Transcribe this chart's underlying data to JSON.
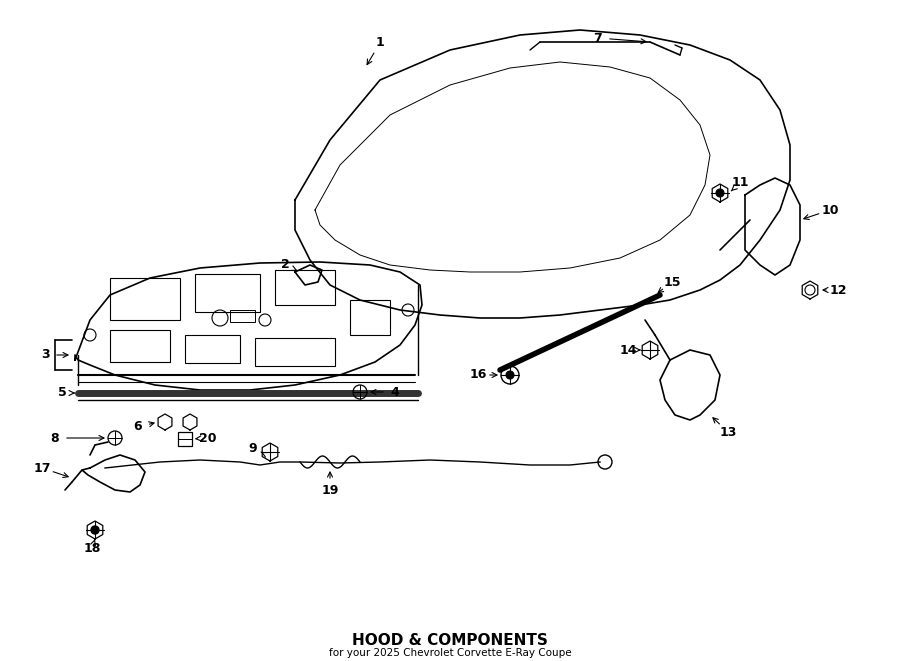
{
  "title": "HOOD & COMPONENTS",
  "subtitle": "for your 2025 Chevrolet Corvette E-Ray Coupe",
  "background_color": "#ffffff",
  "line_color": "#000000",
  "fig_width": 9.0,
  "fig_height": 6.61,
  "dpi": 100
}
